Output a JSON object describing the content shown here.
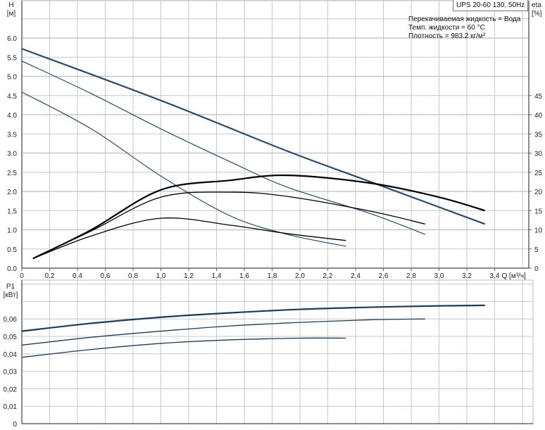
{
  "header": {
    "model": "UPS 20-60 130, 50Hz",
    "fluid": "Перекачиваемая жидкость = Вода",
    "temperature": "Темп. жидкости = 60 °C",
    "density": "Плотность = 983.2 кг/м³"
  },
  "colors": {
    "head": "#2a4a6a",
    "efficiency": "#000000",
    "power": "#1f3a55",
    "grid": "#c8c8c8"
  },
  "chart_data": [
    {
      "type": "line",
      "title": "",
      "xlabel": "Q [м³/ч]",
      "ylabel": "H\n[м]",
      "ylabel_left_1": "H",
      "ylabel_left_2": "[м]",
      "ylabel_right_1": "eta",
      "ylabel_right_2": "[%]",
      "xlim": [
        0,
        3.65
      ],
      "ylim": [
        0,
        7.0
      ],
      "ylim_right": [
        0,
        70
      ],
      "grid": true,
      "x_ticks": [
        "0",
        "0,2",
        "0,4",
        "0,6",
        "0,8",
        "1,0",
        "1,2",
        "1,4",
        "1,6",
        "1,8",
        "2,0",
        "2,2",
        "2,4",
        "2,6",
        "2,8",
        "3,0",
        "3,2",
        "3,4"
      ],
      "y_ticks": [
        "0.0",
        "0.5",
        "1.0",
        "1.5",
        "2.0",
        "2.5",
        "3.0",
        "3.5",
        "4.0",
        "4.5",
        "5.0",
        "5.5",
        "6.0"
      ],
      "y_right_ticks": [
        "0",
        "5",
        "10",
        "15",
        "20",
        "25",
        "30",
        "35",
        "40",
        "45"
      ],
      "head_series": [
        {
          "x": [
            0,
            1.0,
            1.91,
            2.5,
            3.33
          ],
          "y": [
            5.72,
            4.37,
            3.05,
            2.26,
            1.15
          ],
          "weight": "bold"
        },
        {
          "x": [
            0,
            0.5,
            1.0,
            1.5,
            1.91,
            2.5,
            2.9
          ],
          "y": [
            5.4,
            4.55,
            3.63,
            2.77,
            2.11,
            1.43,
            0.88
          ]
        },
        {
          "x": [
            0,
            0.5,
            1.0,
            1.5,
            1.91,
            2.33
          ],
          "y": [
            4.59,
            3.63,
            2.4,
            1.36,
            0.88,
            0.57
          ]
        }
      ],
      "efficiency_series_percent": [
        {
          "x": [
            0.08,
            0.5,
            1.0,
            1.5,
            1.91,
            2.5,
            3.0,
            3.33
          ],
          "y": [
            2.5,
            10,
            20.4,
            22.9,
            24.2,
            22.2,
            18.5,
            15
          ],
          "weight": "bold"
        },
        {
          "x": [
            0.08,
            0.5,
            1.0,
            1.5,
            1.91,
            2.5,
            2.9
          ],
          "y": [
            2.5,
            9.7,
            18.5,
            19.8,
            18.7,
            14.9,
            11.5
          ]
        },
        {
          "x": [
            0.08,
            0.5,
            1.0,
            1.5,
            1.91,
            2.33
          ],
          "y": [
            2.5,
            8.4,
            13.0,
            11.2,
            9.0,
            7.2
          ]
        }
      ]
    },
    {
      "type": "line",
      "title": "",
      "ylabel_1": "P1",
      "ylabel_2": "[кВт]",
      "xlim": [
        0,
        3.65
      ],
      "ylim": [
        0,
        0.082
      ],
      "grid": true,
      "y_ticks": [
        "0",
        "0,01",
        "0,02",
        "0,03",
        "0,04",
        "0,05",
        "0,06"
      ],
      "series": [
        {
          "x": [
            0,
            0.5,
            1.0,
            1.5,
            2.0,
            2.5,
            3.0,
            3.33
          ],
          "y": [
            0.053,
            0.0575,
            0.061,
            0.0635,
            0.0655,
            0.0667,
            0.0675,
            0.0678
          ],
          "weight": "bold"
        },
        {
          "x": [
            0,
            0.5,
            1.0,
            1.5,
            2.0,
            2.5,
            2.9
          ],
          "y": [
            0.045,
            0.0495,
            0.053,
            0.056,
            0.058,
            0.0595,
            0.06
          ]
        },
        {
          "x": [
            0,
            0.5,
            1.0,
            1.5,
            2.0,
            2.33
          ],
          "y": [
            0.038,
            0.0425,
            0.046,
            0.048,
            0.049,
            0.049
          ]
        }
      ]
    }
  ]
}
